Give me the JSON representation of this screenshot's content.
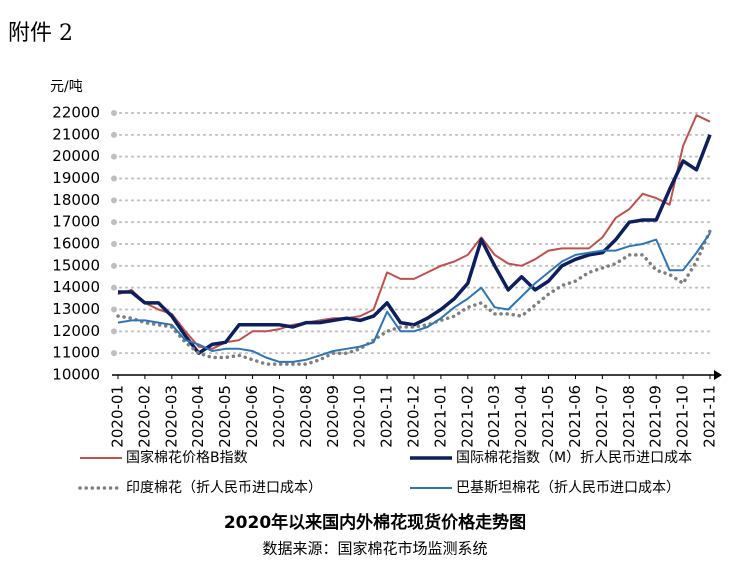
{
  "header": "附件 2",
  "chart_data": {
    "type": "line",
    "title": "2020年以来国内外棉花现货价格走势图",
    "source": "数据来源：国家棉花市场监测系统",
    "y_unit": "元/吨",
    "categories": [
      "2020-01",
      null,
      "2020-02",
      null,
      "2020-03",
      null,
      "2020-04",
      null,
      "2020-05",
      null,
      "2020-06",
      null,
      "2020-07",
      null,
      "2020-08",
      null,
      "2020-09",
      null,
      "2020-10",
      null,
      "2020-11",
      null,
      "2020-12",
      null,
      "2021-01",
      null,
      "2021-02",
      null,
      "2021-03",
      null,
      "2021-04",
      null,
      "2021-05",
      null,
      "2021-06",
      null,
      "2021-07",
      null,
      "2021-08",
      null,
      "2021-09",
      null,
      "2021-10",
      null,
      "2021-11"
    ],
    "ylim": [
      10000,
      22000
    ],
    "yticks": [
      10000,
      11000,
      12000,
      13000,
      14000,
      15000,
      16000,
      17000,
      18000,
      19000,
      20000,
      21000,
      22000
    ],
    "grid": true,
    "legend": "bottom",
    "series": [
      {
        "name": "国家棉花价格B指数",
        "color": "#c0504d",
        "linestyle": "solid",
        "values": [
          13700,
          13900,
          13300,
          13000,
          12800,
          12000,
          11300,
          11200,
          11500,
          11600,
          12000,
          12000,
          12100,
          12300,
          12400,
          12500,
          12600,
          12600,
          12700,
          13000,
          14700,
          14400,
          14400,
          14700,
          15000,
          15200,
          15500,
          16300,
          15500,
          15100,
          15000,
          15300,
          15700,
          15800,
          15800,
          15800,
          16300,
          17200,
          17600,
          18300,
          18100,
          17800,
          20500,
          21900,
          21600
        ]
      },
      {
        "name": "国际棉花指数（M）折人民币进口成本",
        "color": "#0d1f5c",
        "linestyle": "bold",
        "values": [
          13800,
          13800,
          13300,
          13300,
          12700,
          11800,
          11000,
          11400,
          11500,
          12300,
          12300,
          12300,
          12300,
          12200,
          12400,
          12400,
          12500,
          12600,
          12500,
          12700,
          13300,
          12400,
          12300,
          12600,
          13000,
          13500,
          14200,
          16200,
          15000,
          13900,
          14500,
          13900,
          14300,
          15000,
          15300,
          15500,
          15600,
          16200,
          17000,
          17100,
          17100,
          18500,
          19800,
          19400,
          21000
        ]
      },
      {
        "name": "印度棉花（折人民币进口成本）",
        "color": "#7f7f7f",
        "linestyle": "dotted",
        "values": [
          12700,
          12600,
          12400,
          12300,
          12200,
          11500,
          11000,
          10800,
          10800,
          10900,
          10700,
          10500,
          10500,
          10500,
          10500,
          10700,
          11000,
          11000,
          11200,
          11600,
          12000,
          12200,
          12200,
          12300,
          12500,
          12700,
          13100,
          13300,
          12800,
          12800,
          12700,
          13200,
          13700,
          14100,
          14300,
          14700,
          14900,
          15100,
          15500,
          15500,
          14800,
          14600,
          14200,
          15200,
          16600
        ]
      },
      {
        "name": "巴基斯坦棉花（折人民币进口成本）",
        "color": "#2e75b6",
        "linestyle": "solid",
        "values": [
          12400,
          12500,
          12500,
          12400,
          12300,
          11600,
          11400,
          11100,
          11200,
          11200,
          11100,
          10800,
          10600,
          10600,
          10700,
          10900,
          11100,
          11200,
          11300,
          11500,
          12900,
          12000,
          12000,
          12200,
          12600,
          13100,
          13500,
          14000,
          13100,
          13000,
          13600,
          14200,
          14700,
          15200,
          15500,
          15600,
          15700,
          15700,
          15900,
          16000,
          16200,
          14800,
          14800,
          15600,
          16500
        ]
      }
    ]
  }
}
